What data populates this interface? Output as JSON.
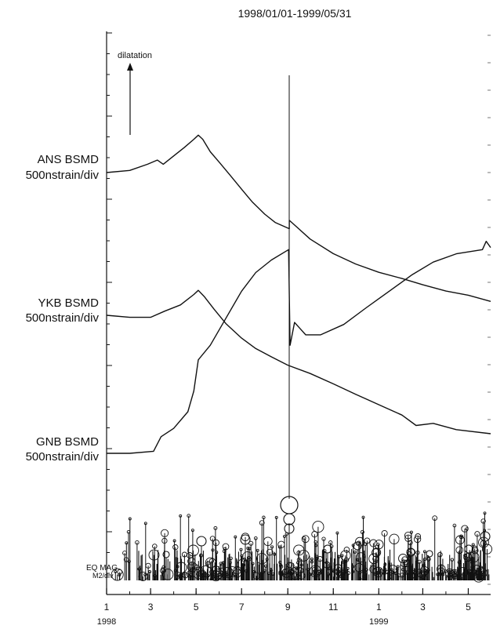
{
  "chart_data": {
    "type": "line",
    "title": "1998/01/01-1999/05/31",
    "annotation": "dilatation",
    "x_start": "1998-01-01",
    "x_end": "1999-05-31",
    "x_ticks": [
      {
        "date": "1998-01-01",
        "label": "1"
      },
      {
        "date": "1998-03-01",
        "label": "3"
      },
      {
        "date": "1998-05-01",
        "label": "5"
      },
      {
        "date": "1998-07-01",
        "label": "7"
      },
      {
        "date": "1998-09-01",
        "label": "9"
      },
      {
        "date": "1998-11-01",
        "label": "11"
      },
      {
        "date": "1999-01-01",
        "label": "1"
      },
      {
        "date": "1999-03-01",
        "label": "3"
      },
      {
        "date": "1999-05-01",
        "label": "5"
      }
    ],
    "year_labels": [
      {
        "date": "1998-01-01",
        "label": "1998"
      },
      {
        "date": "1999-01-01",
        "label": "1999"
      }
    ],
    "series": [
      {
        "name": "ANS BSMD",
        "scale": "500nstrain/div",
        "points": [
          [
            "1998-01-01",
            0.0
          ],
          [
            "1998-02-01",
            0.1
          ],
          [
            "1998-02-25",
            0.4
          ],
          [
            "1998-03-10",
            0.6
          ],
          [
            "1998-03-18",
            0.4
          ],
          [
            "1998-04-01",
            0.8
          ],
          [
            "1998-04-15",
            1.2
          ],
          [
            "1998-04-28",
            1.6
          ],
          [
            "1998-05-04",
            1.8
          ],
          [
            "1998-05-10",
            1.6
          ],
          [
            "1998-05-20",
            1.0
          ],
          [
            "1998-06-01",
            0.5
          ],
          [
            "1998-06-15",
            -0.1
          ],
          [
            "1998-07-01",
            -0.8
          ],
          [
            "1998-07-15",
            -1.4
          ],
          [
            "1998-08-01",
            -2.0
          ],
          [
            "1998-08-15",
            -2.4
          ],
          [
            "1998-09-03",
            -2.7
          ],
          [
            "1998-09-03",
            -2.3
          ],
          [
            "1998-10-01",
            -3.2
          ],
          [
            "1998-11-01",
            -3.9
          ],
          [
            "1998-12-01",
            -4.4
          ],
          [
            "1999-01-01",
            -4.8
          ],
          [
            "1999-02-01",
            -5.1
          ],
          [
            "1999-03-01",
            -5.4
          ],
          [
            "1999-04-01",
            -5.7
          ],
          [
            "1999-05-01",
            -5.9
          ],
          [
            "1999-05-31",
            -6.2
          ]
        ]
      },
      {
        "name": "YKB BSMD",
        "scale": "500nstrain/div",
        "points": [
          [
            "1998-01-01",
            0.0
          ],
          [
            "1998-02-01",
            -0.1
          ],
          [
            "1998-03-01",
            -0.1
          ],
          [
            "1998-03-20",
            0.2
          ],
          [
            "1998-04-10",
            0.5
          ],
          [
            "1998-04-28",
            1.0
          ],
          [
            "1998-05-04",
            1.2
          ],
          [
            "1998-05-12",
            0.9
          ],
          [
            "1998-05-25",
            0.3
          ],
          [
            "1998-06-10",
            -0.4
          ],
          [
            "1998-07-01",
            -1.1
          ],
          [
            "1998-07-20",
            -1.6
          ],
          [
            "1998-08-10",
            -2.0
          ],
          [
            "1998-09-01",
            -2.4
          ],
          [
            "1998-10-01",
            -2.8
          ],
          [
            "1998-11-01",
            -3.3
          ],
          [
            "1998-12-01",
            -3.8
          ],
          [
            "1999-01-01",
            -4.3
          ],
          [
            "1999-02-01",
            -4.8
          ],
          [
            "1999-02-20",
            -5.3
          ],
          [
            "1999-03-15",
            -5.2
          ],
          [
            "1999-04-15",
            -5.5
          ],
          [
            "1999-05-31",
            -5.7
          ]
        ]
      },
      {
        "name": "GNB BSMD",
        "scale": "500nstrain/div",
        "points": [
          [
            "1998-01-01",
            0.0
          ],
          [
            "1998-02-01",
            0.0
          ],
          [
            "1998-03-05",
            0.1
          ],
          [
            "1998-03-15",
            0.8
          ],
          [
            "1998-04-01",
            1.2
          ],
          [
            "1998-04-20",
            2.0
          ],
          [
            "1998-04-28",
            3.0
          ],
          [
            "1998-05-04",
            4.5
          ],
          [
            "1998-05-20",
            5.2
          ],
          [
            "1998-06-10",
            6.5
          ],
          [
            "1998-07-01",
            7.8
          ],
          [
            "1998-07-20",
            8.7
          ],
          [
            "1998-08-10",
            9.3
          ],
          [
            "1998-09-02",
            9.8
          ],
          [
            "1998-09-04",
            5.2
          ],
          [
            "1998-09-10",
            6.3
          ],
          [
            "1998-09-25",
            5.7
          ],
          [
            "1998-10-15",
            5.7
          ],
          [
            "1998-11-15",
            6.2
          ],
          [
            "1998-12-15",
            7.0
          ],
          [
            "1999-01-15",
            7.8
          ],
          [
            "1999-02-15",
            8.6
          ],
          [
            "1999-03-15",
            9.2
          ],
          [
            "1999-04-15",
            9.6
          ],
          [
            "1999-05-20",
            9.8
          ],
          [
            "1999-05-25",
            10.2
          ],
          [
            "1999-05-31",
            9.9
          ]
        ]
      }
    ],
    "earthquakes": {
      "label_line1": "EQ MAG.",
      "label_line2": "M2/div",
      "major_event": {
        "date": "1998-09-03",
        "magnitude": 6.1
      }
    }
  }
}
